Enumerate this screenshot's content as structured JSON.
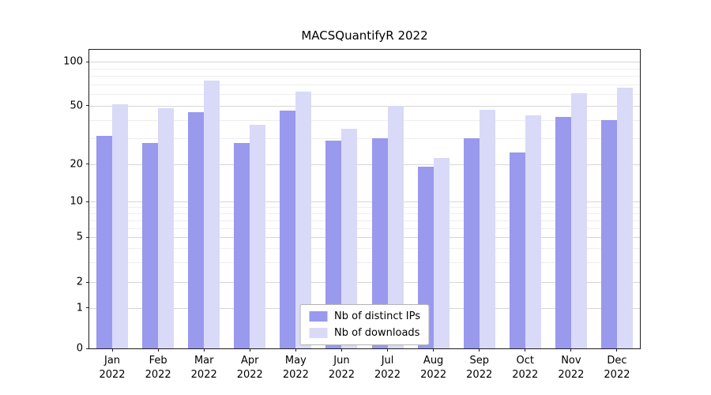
{
  "chart_data": {
    "type": "bar",
    "title": "MACSQuantifyR 2022",
    "categories": [
      "Jan",
      "Feb",
      "Mar",
      "Apr",
      "May",
      "Jun",
      "Jul",
      "Aug",
      "Sep",
      "Oct",
      "Nov",
      "Dec"
    ],
    "year_label": "2022",
    "series": [
      {
        "name": "Nb of distinct IPs",
        "color": "#9999ee",
        "values": [
          31,
          28,
          45,
          28,
          46,
          29,
          30,
          19,
          30,
          24,
          42,
          40
        ]
      },
      {
        "name": "Nb of downloads",
        "color": "#d9d9f8",
        "values": [
          51,
          48,
          74,
          37,
          62,
          35,
          50,
          22,
          47,
          43,
          61,
          66
        ]
      }
    ],
    "yticks": [
      0,
      1,
      2,
      5,
      10,
      20,
      50,
      100
    ],
    "ylim": [
      0,
      110
    ],
    "yscale": "symlog",
    "grid": true,
    "legend_position": "lower center",
    "xlabel": "",
    "ylabel": ""
  }
}
